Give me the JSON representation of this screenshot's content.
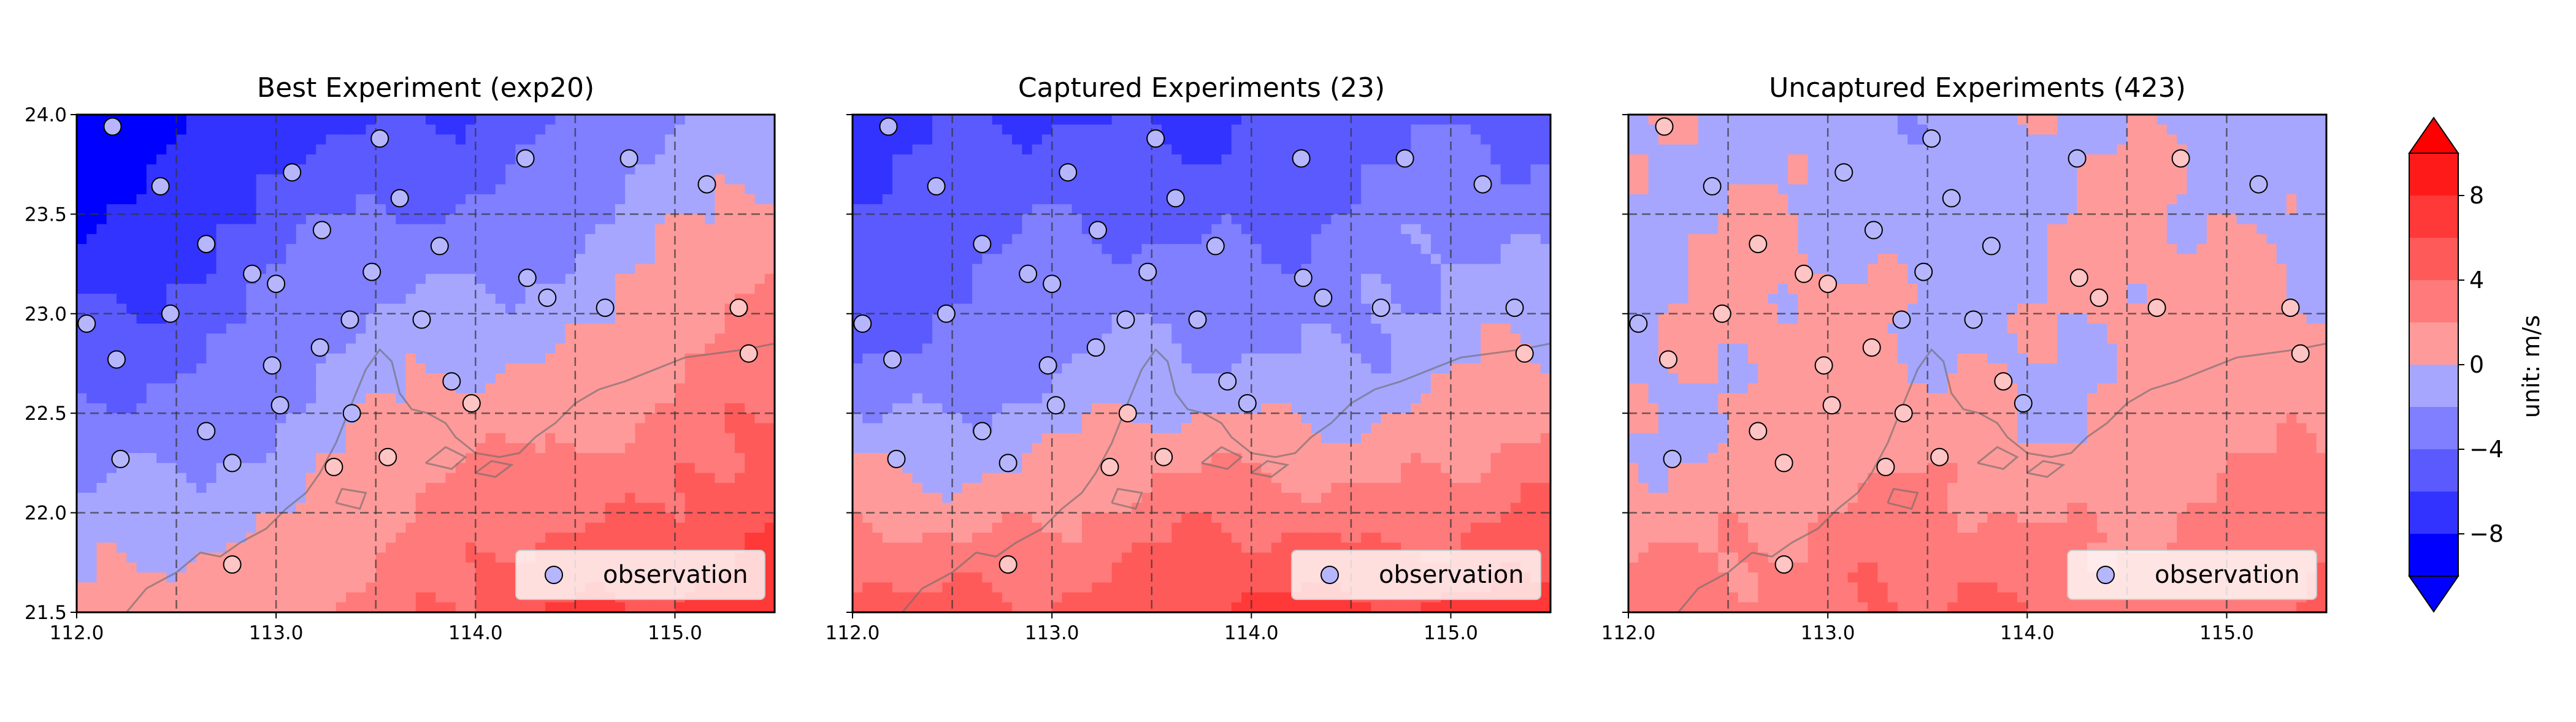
{
  "chart_data": [
    {
      "type": "heatmap",
      "title": "Best Experiment (exp20)",
      "xlim": [
        112.0,
        115.5
      ],
      "ylim": [
        21.5,
        24.0
      ],
      "xticks": [
        "112.0",
        "113.0",
        "114.0",
        "115.0"
      ],
      "yticks": [
        "21.5",
        "22.0",
        "22.5",
        "23.0",
        "23.5",
        "24.0"
      ],
      "grid": true,
      "legend": {
        "label": "observation",
        "location": "lower-right"
      },
      "field_pattern": "gradient from about -10 m/s in the north-west to about +10 m/s in the south-east",
      "observations": [
        {
          "lon": 112.05,
          "lat": 22.95,
          "value": -4
        },
        {
          "lon": 112.18,
          "lat": 23.94,
          "value": 3
        },
        {
          "lon": 112.2,
          "lat": 22.77,
          "value": 4
        },
        {
          "lon": 112.22,
          "lat": 22.27,
          "value": 3
        },
        {
          "lon": 112.42,
          "lat": 23.64,
          "value": -3
        },
        {
          "lon": 112.47,
          "lat": 23.0,
          "value": -6
        },
        {
          "lon": 112.65,
          "lat": 23.35,
          "value": -2
        },
        {
          "lon": 112.65,
          "lat": 22.41,
          "value": 2
        },
        {
          "lon": 112.78,
          "lat": 22.25,
          "value": 2
        },
        {
          "lon": 112.78,
          "lat": 21.74,
          "value": 2
        },
        {
          "lon": 112.88,
          "lat": 23.2,
          "value": -2
        },
        {
          "lon": 112.98,
          "lat": 22.74,
          "value": 2
        },
        {
          "lon": 113.0,
          "lat": 23.15,
          "value": -2
        },
        {
          "lon": 113.02,
          "lat": 22.54,
          "value": 2
        },
        {
          "lon": 113.08,
          "lat": 23.71,
          "value": -2
        },
        {
          "lon": 113.22,
          "lat": 22.83,
          "value": 2
        },
        {
          "lon": 113.23,
          "lat": 23.42,
          "value": 2
        },
        {
          "lon": 113.29,
          "lat": 22.23,
          "value": 2
        },
        {
          "lon": 113.37,
          "lat": 22.97,
          "value": 3
        },
        {
          "lon": 113.38,
          "lat": 22.5,
          "value": 2
        },
        {
          "lon": 113.48,
          "lat": 23.21,
          "value": -2
        },
        {
          "lon": 113.52,
          "lat": 23.88,
          "value": 2
        },
        {
          "lon": 113.56,
          "lat": 22.28,
          "value": 3
        },
        {
          "lon": 113.62,
          "lat": 23.58,
          "value": 3
        },
        {
          "lon": 113.73,
          "lat": 22.97,
          "value": -2
        },
        {
          "lon": 113.82,
          "lat": 23.34,
          "value": -2
        },
        {
          "lon": 113.88,
          "lat": 22.66,
          "value": -2
        },
        {
          "lon": 113.98,
          "lat": 22.55,
          "value": -2
        },
        {
          "lon": 114.25,
          "lat": 23.78,
          "value": -2
        },
        {
          "lon": 114.26,
          "lat": 23.18,
          "value": -2
        },
        {
          "lon": 114.36,
          "lat": 23.08,
          "value": -2
        },
        {
          "lon": 114.65,
          "lat": 23.03,
          "value": -2
        },
        {
          "lon": 114.77,
          "lat": 23.78,
          "value": -2
        },
        {
          "lon": 115.16,
          "lat": 23.65,
          "value": -2
        },
        {
          "lon": 115.32,
          "lat": 23.03,
          "value": -2
        },
        {
          "lon": 115.37,
          "lat": 22.8,
          "value": -2
        }
      ]
    },
    {
      "type": "heatmap",
      "title": "Captured Experiments (23)",
      "xlim": [
        112.0,
        115.5
      ],
      "ylim": [
        21.5,
        24.0
      ],
      "xticks": [
        "112.0",
        "113.0",
        "114.0",
        "115.0"
      ],
      "yticks": [
        "21.5",
        "22.0",
        "22.5",
        "23.0",
        "23.5",
        "24.0"
      ],
      "grid": true,
      "legend": {
        "label": "observation",
        "location": "lower-right"
      },
      "field_pattern": "mostly weak negative (-2 to 0 m/s) in the north, increasing to about +10 m/s in the south-east"
    },
    {
      "type": "heatmap",
      "title": "Uncaptured Experiments (423)",
      "xlim": [
        112.0,
        115.5
      ],
      "ylim": [
        21.5,
        24.0
      ],
      "xticks": [
        "112.0",
        "113.0",
        "114.0",
        "115.0"
      ],
      "yticks": [
        "21.5",
        "22.0",
        "22.5",
        "23.0",
        "23.5",
        "24.0"
      ],
      "grid": true,
      "legend": {
        "label": "observation",
        "location": "lower-right"
      },
      "field_pattern": "weak positive (0 to 2 m/s) over most of the domain with patches of -2 to 0 m/s in the north, about +4 m/s in the south"
    }
  ],
  "colorbar": {
    "label": "unit: m/s",
    "levels": [
      -10,
      -8,
      -6,
      -4,
      -2,
      0,
      2,
      4,
      6,
      8,
      10
    ],
    "tick_labels": [
      "−8",
      "−4",
      "0",
      "4",
      "8"
    ],
    "tick_values": [
      -8,
      -4,
      0,
      4,
      8
    ],
    "extend": "both",
    "colors": [
      "#0000ff",
      "#3333ff",
      "#5a5aff",
      "#7f7fff",
      "#a6a6ff",
      "#ff9a9a",
      "#ff7a7a",
      "#ff5a5a",
      "#ff3838",
      "#ff1a1a"
    ],
    "extend_colors": {
      "min": "#0000ff",
      "max": "#ff0000"
    }
  }
}
